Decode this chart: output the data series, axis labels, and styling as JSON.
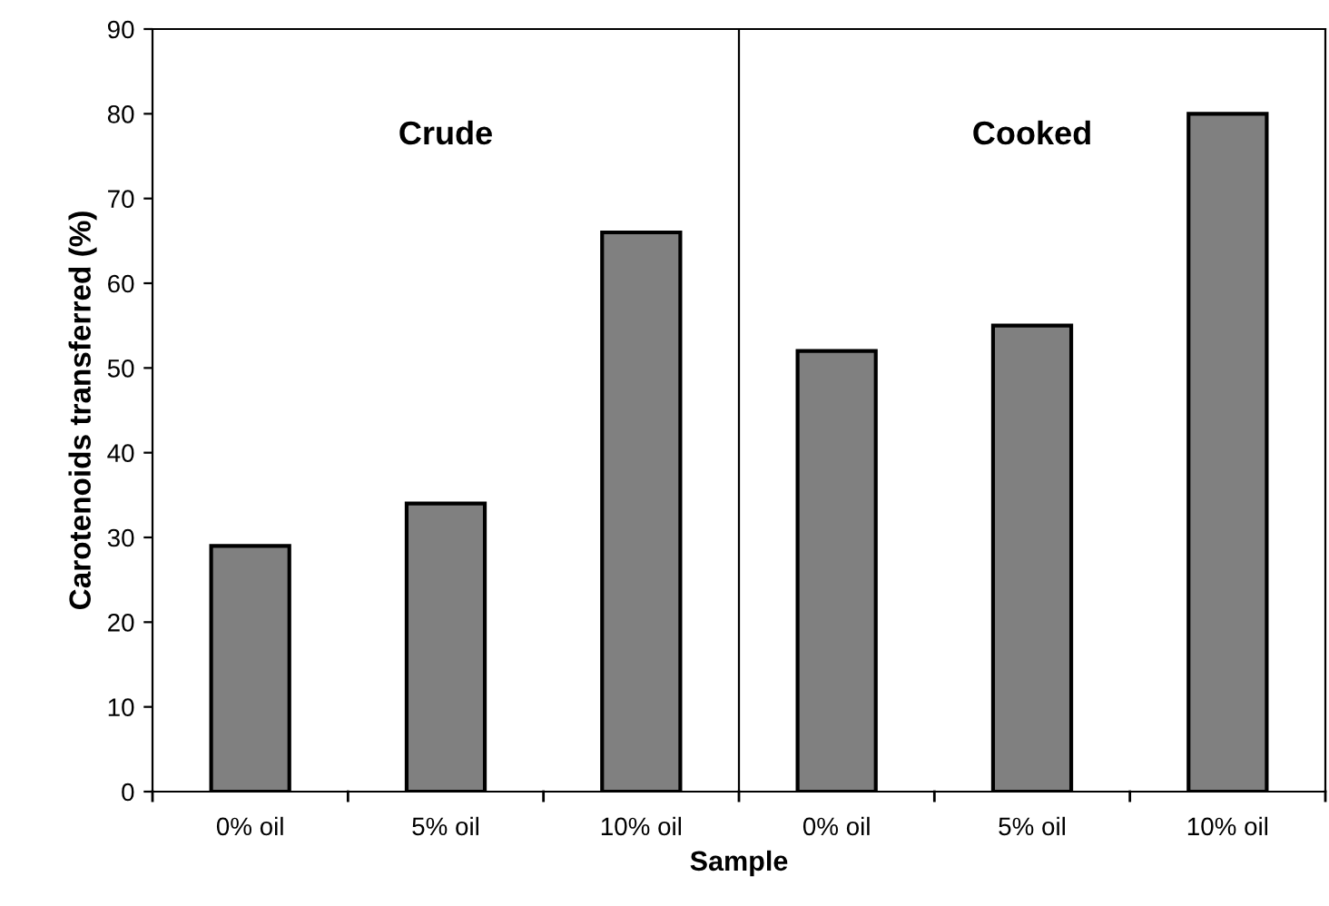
{
  "chart_data": {
    "type": "bar",
    "xlabel": "Sample",
    "ylabel": "Carotenoids transferred (%)",
    "categories": [
      "0% oil",
      "5% oil",
      "10% oil",
      "0% oil",
      "5% oil",
      "10% oil"
    ],
    "values": [
      29,
      34,
      66,
      52,
      55,
      80
    ],
    "color": "#808080",
    "ylim": [
      0,
      90
    ],
    "yticks": [
      0,
      10,
      20,
      30,
      40,
      50,
      60,
      70,
      80,
      90
    ],
    "grid": false,
    "annotations": [
      "Crude",
      "Cooked"
    ]
  }
}
